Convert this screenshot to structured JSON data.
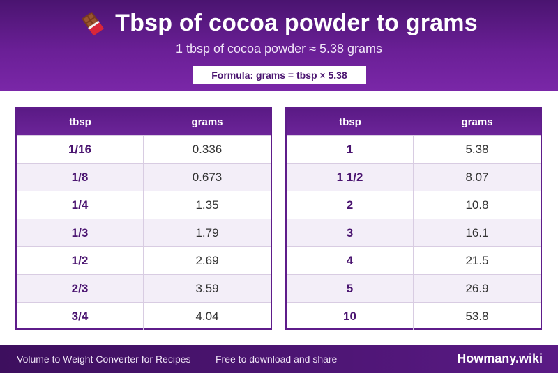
{
  "header": {
    "icon": "chocolate-bar-icon",
    "title": "Tbsp of cocoa powder to grams",
    "subtitle": "1 tbsp of cocoa powder ≈ 5.38 grams",
    "formula": "Formula: grams = tbsp × 5.38"
  },
  "tables": {
    "left": {
      "headers": [
        "tbsp",
        "grams"
      ],
      "rows": [
        [
          "1/16",
          "0.336"
        ],
        [
          "1/8",
          "0.673"
        ],
        [
          "1/4",
          "1.35"
        ],
        [
          "1/3",
          "1.79"
        ],
        [
          "1/2",
          "2.69"
        ],
        [
          "2/3",
          "3.59"
        ],
        [
          "3/4",
          "4.04"
        ]
      ]
    },
    "right": {
      "headers": [
        "tbsp",
        "grams"
      ],
      "rows": [
        [
          "1",
          "5.38"
        ],
        [
          "1 1/2",
          "8.07"
        ],
        [
          "2",
          "10.8"
        ],
        [
          "3",
          "16.1"
        ],
        [
          "4",
          "21.5"
        ],
        [
          "5",
          "26.9"
        ],
        [
          "10",
          "53.8"
        ]
      ]
    }
  },
  "footer": {
    "left_text": "Volume to Weight Converter for Recipes",
    "mid_text": "Free to download and share",
    "brand": "Howmany.wiki"
  },
  "colors": {
    "primary": "#5a1a85",
    "dark": "#3d0f5e",
    "accent_text": "#4a1470"
  }
}
